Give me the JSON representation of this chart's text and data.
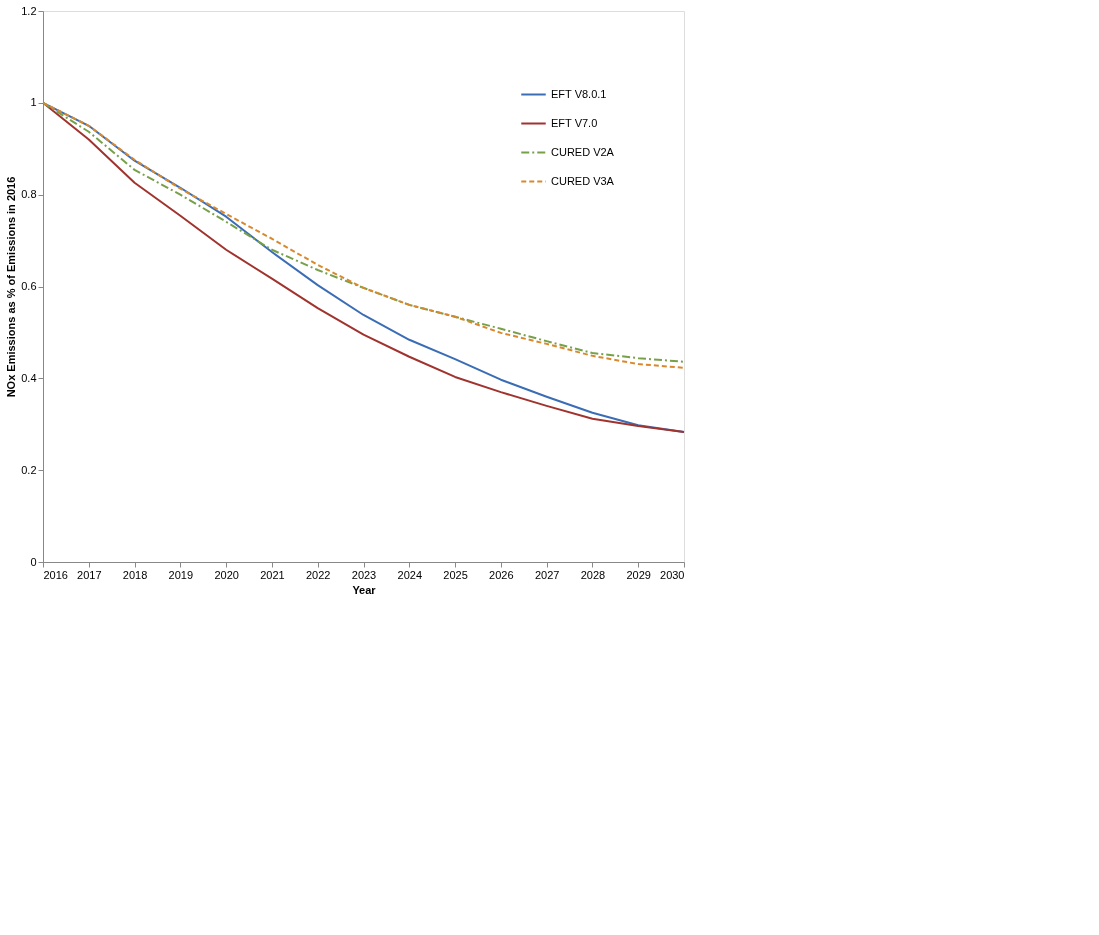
{
  "chart_data": {
    "type": "line",
    "xlabel": "Year",
    "ylabel": "NOx Emissions as % of Emissions in 2016",
    "x": [
      2016,
      2017,
      2018,
      2019,
      2020,
      2021,
      2022,
      2023,
      2024,
      2025,
      2026,
      2027,
      2028,
      2029,
      2030
    ],
    "xlim": [
      2016,
      2030
    ],
    "xticks": [
      2016,
      2017,
      2018,
      2019,
      2020,
      2021,
      2022,
      2023,
      2024,
      2025,
      2026,
      2027,
      2028,
      2029,
      2030
    ],
    "ylim": [
      0,
      1.2
    ],
    "yticks": [
      0,
      0.2,
      0.4,
      0.6,
      0.8,
      1,
      1.2
    ],
    "grid": false,
    "legend": "top right",
    "marker": "none",
    "series": [
      {
        "name": "EFT V8.0.1",
        "color": "#3b6db5",
        "line_style": "solid",
        "values": [
          1.0,
          0.95,
          0.874,
          0.815,
          0.752,
          0.675,
          0.603,
          0.538,
          0.484,
          0.442,
          0.397,
          0.36,
          0.325,
          0.298,
          0.283
        ]
      },
      {
        "name": "EFT V7.0",
        "color": "#a0332e",
        "line_style": "solid",
        "values": [
          1.0,
          0.92,
          0.826,
          0.754,
          0.68,
          0.617,
          0.553,
          0.495,
          0.447,
          0.403,
          0.37,
          0.34,
          0.312,
          0.296,
          0.283
        ]
      },
      {
        "name": "CURED V2A",
        "color": "#77a04a",
        "line_style": "dashdot",
        "values": [
          1.0,
          0.937,
          0.854,
          0.8,
          0.741,
          0.68,
          0.636,
          0.597,
          0.56,
          0.534,
          0.508,
          0.481,
          0.455,
          0.444,
          0.436
        ]
      },
      {
        "name": "CURED V3A",
        "color": "#d8892e",
        "line_style": "dashed",
        "values": [
          1.0,
          0.95,
          0.876,
          0.813,
          0.758,
          0.704,
          0.647,
          0.597,
          0.56,
          0.534,
          0.499,
          0.475,
          0.449,
          0.431,
          0.423
        ]
      }
    ]
  }
}
